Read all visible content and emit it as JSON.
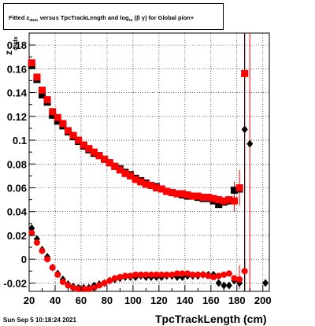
{
  "title": {
    "prefix": "Fitted  z",
    "sub1": "dNdx",
    "middle": "  versus TpcTrackLength and log",
    "sub2": "10",
    "suffix": "(β  γ) for Global pion+"
  },
  "timestamp": "Sun Sep  5 10:18:24 2021",
  "colors": {
    "black_series": "#000000",
    "red_series": "#ff0000"
  },
  "chart_data": {
    "type": "scatter",
    "xlabel": "TpcTrackLength (cm)",
    "ylabel": "z",
    "ylabel_sub": "dNdx",
    "xlim": [
      20,
      205
    ],
    "ylim": [
      -0.027,
      0.19
    ],
    "xticks": [
      20,
      40,
      60,
      80,
      100,
      120,
      140,
      160,
      180,
      200
    ],
    "xtick_labels": [
      "20",
      "40",
      "60",
      "80",
      "100",
      "120",
      "140",
      "160",
      "180",
      "200"
    ],
    "yticks": [
      -0.02,
      0,
      0.02,
      0.04,
      0.06,
      0.08,
      0.1,
      0.12,
      0.14,
      0.16,
      0.18
    ],
    "ytick_labels": [
      "-0.02",
      "0",
      "0.02",
      "0.04",
      "0.06",
      "0.08",
      "0.1",
      "0.12",
      "0.14",
      "0.16",
      "0.18"
    ],
    "grid": true,
    "series": [
      {
        "marker": "square",
        "color": "#000000",
        "points": [
          [
            22,
            0.163
          ],
          [
            26,
            0.151
          ],
          [
            30,
            0.138
          ],
          [
            34,
            0.132
          ],
          [
            38,
            0.121
          ],
          [
            42,
            0.116
          ],
          [
            46,
            0.112
          ],
          [
            50,
            0.107
          ],
          [
            54,
            0.103
          ],
          [
            58,
            0.099
          ],
          [
            62,
            0.095
          ],
          [
            66,
            0.092
          ],
          [
            70,
            0.089
          ],
          [
            74,
            0.087
          ],
          [
            78,
            0.084
          ],
          [
            82,
            0.081
          ],
          [
            86,
            0.078
          ],
          [
            90,
            0.076
          ],
          [
            94,
            0.073
          ],
          [
            98,
            0.071
          ],
          [
            102,
            0.068
          ],
          [
            106,
            0.066
          ],
          [
            110,
            0.064
          ],
          [
            114,
            0.062
          ],
          [
            118,
            0.061
          ],
          [
            122,
            0.059
          ],
          [
            126,
            0.057
          ],
          [
            130,
            0.056
          ],
          [
            134,
            0.055
          ],
          [
            138,
            0.054
          ],
          [
            142,
            0.053
          ],
          [
            146,
            0.053
          ],
          [
            150,
            0.052
          ],
          [
            154,
            0.051
          ],
          [
            158,
            0.051
          ],
          [
            162,
            0.049
          ],
          [
            166,
            0.046
          ],
          [
            170,
            0.048
          ],
          [
            174,
            0.049
          ],
          [
            178,
            0.058
          ],
          [
            182,
            0.059
          ]
        ]
      },
      {
        "marker": "square",
        "color": "#ff0000",
        "points": [
          [
            22,
            0.165
          ],
          [
            26,
            0.153
          ],
          [
            30,
            0.142
          ],
          [
            34,
            0.134
          ],
          [
            38,
            0.124
          ],
          [
            42,
            0.119
          ],
          [
            46,
            0.114
          ],
          [
            50,
            0.108
          ],
          [
            54,
            0.104
          ],
          [
            58,
            0.1
          ],
          [
            62,
            0.096
          ],
          [
            66,
            0.093
          ],
          [
            70,
            0.09
          ],
          [
            74,
            0.087
          ],
          [
            78,
            0.084
          ],
          [
            82,
            0.081
          ],
          [
            86,
            0.078
          ],
          [
            90,
            0.075
          ],
          [
            94,
            0.072
          ],
          [
            98,
            0.07
          ],
          [
            102,
            0.067
          ],
          [
            106,
            0.065
          ],
          [
            110,
            0.063
          ],
          [
            114,
            0.062
          ],
          [
            118,
            0.06
          ],
          [
            122,
            0.059
          ],
          [
            126,
            0.057
          ],
          [
            130,
            0.056
          ],
          [
            134,
            0.055
          ],
          [
            138,
            0.055
          ],
          [
            142,
            0.054
          ],
          [
            146,
            0.053
          ],
          [
            150,
            0.053
          ],
          [
            154,
            0.052
          ],
          [
            158,
            0.052
          ],
          [
            162,
            0.051
          ],
          [
            166,
            0.05
          ],
          [
            170,
            0.049
          ],
          [
            174,
            0.05
          ],
          [
            178,
            0.049
          ],
          [
            182,
            0.06
          ],
          [
            186,
            0.156
          ]
        ]
      },
      {
        "marker": "diamond",
        "color": "#000000",
        "points": [
          [
            22,
            0.026
          ],
          [
            26,
            0.017
          ],
          [
            30,
            0.008
          ],
          [
            34,
            0.002
          ],
          [
            38,
            -0.007
          ],
          [
            42,
            -0.012
          ],
          [
            46,
            -0.017
          ],
          [
            50,
            -0.021
          ],
          [
            54,
            -0.023
          ],
          [
            58,
            -0.024
          ],
          [
            62,
            -0.024
          ],
          [
            66,
            -0.024
          ],
          [
            70,
            -0.022
          ],
          [
            74,
            -0.021
          ],
          [
            78,
            -0.02
          ],
          [
            82,
            -0.018
          ],
          [
            86,
            -0.017
          ],
          [
            90,
            -0.016
          ],
          [
            94,
            -0.015
          ],
          [
            98,
            -0.015
          ],
          [
            102,
            -0.015
          ],
          [
            106,
            -0.014
          ],
          [
            110,
            -0.015
          ],
          [
            114,
            -0.015
          ],
          [
            118,
            -0.015
          ],
          [
            122,
            -0.015
          ],
          [
            126,
            -0.014
          ],
          [
            130,
            -0.014
          ],
          [
            134,
            -0.015
          ],
          [
            138,
            -0.015
          ],
          [
            142,
            -0.014
          ],
          [
            146,
            -0.014
          ],
          [
            150,
            -0.014
          ],
          [
            154,
            -0.013
          ],
          [
            158,
            -0.013
          ],
          [
            162,
            -0.013
          ],
          [
            166,
            -0.02
          ],
          [
            170,
            -0.022
          ],
          [
            174,
            -0.022
          ],
          [
            178,
            -0.018
          ],
          [
            182,
            -0.02
          ],
          [
            186,
            0.109
          ],
          [
            190,
            0.097
          ],
          [
            202,
            -0.02
          ]
        ]
      },
      {
        "marker": "circle",
        "color": "#ff0000",
        "points": [
          [
            22,
            0.022
          ],
          [
            26,
            0.014
          ],
          [
            30,
            0.007
          ],
          [
            34,
            0.0
          ],
          [
            38,
            -0.007
          ],
          [
            42,
            -0.013
          ],
          [
            46,
            -0.019
          ],
          [
            50,
            -0.022
          ],
          [
            54,
            -0.024
          ],
          [
            58,
            -0.025
          ],
          [
            62,
            -0.025
          ],
          [
            66,
            -0.025
          ],
          [
            70,
            -0.024
          ],
          [
            74,
            -0.022
          ],
          [
            78,
            -0.02
          ],
          [
            82,
            -0.018
          ],
          [
            86,
            -0.016
          ],
          [
            90,
            -0.015
          ],
          [
            94,
            -0.014
          ],
          [
            98,
            -0.014
          ],
          [
            102,
            -0.013
          ],
          [
            106,
            -0.013
          ],
          [
            110,
            -0.013
          ],
          [
            114,
            -0.013
          ],
          [
            118,
            -0.013
          ],
          [
            122,
            -0.013
          ],
          [
            126,
            -0.013
          ],
          [
            130,
            -0.013
          ],
          [
            134,
            -0.012
          ],
          [
            138,
            -0.012
          ],
          [
            142,
            -0.012
          ],
          [
            146,
            -0.013
          ],
          [
            150,
            -0.013
          ],
          [
            154,
            -0.013
          ],
          [
            158,
            -0.014
          ],
          [
            162,
            -0.015
          ],
          [
            166,
            -0.014
          ],
          [
            170,
            -0.013
          ],
          [
            174,
            -0.012
          ],
          [
            178,
            -0.016
          ],
          [
            182,
            -0.017
          ],
          [
            186,
            -0.01
          ]
        ]
      }
    ],
    "error_bars": [
      {
        "x": 182,
        "ylo": 0.045,
        "yhi": 0.075,
        "color": "#ff0000"
      },
      {
        "x": 186,
        "ylo": -0.027,
        "yhi": 0.19,
        "color": "#ff0000"
      },
      {
        "x": 190,
        "ylo": -0.027,
        "yhi": 0.19,
        "color": "#ff0000"
      },
      {
        "x": 186,
        "ylo": -0.027,
        "yhi": 0.19,
        "color": "#000000"
      },
      {
        "x": 178,
        "ylo": 0.04,
        "yhi": 0.065,
        "color": "#ff0000"
      },
      {
        "x": 182,
        "ylo": -0.025,
        "yhi": -0.005,
        "color": "#ff0000"
      },
      {
        "x": 186,
        "ylo": -0.027,
        "yhi": 0.0,
        "color": "#000000"
      }
    ]
  }
}
